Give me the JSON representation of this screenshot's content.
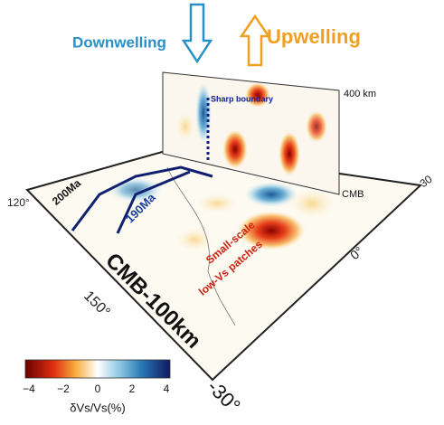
{
  "arrows": {
    "downwelling": "Downwelling",
    "upwelling": "Upwelling"
  },
  "section": {
    "boundary": "Sharp boundary",
    "top_depth": "400 km",
    "bottom_depth": "CMB"
  },
  "map": {
    "slab_ages": [
      "200Ma",
      "190Ma"
    ],
    "annotation_lines": [
      "Small-scale",
      "low-Vs patches"
    ],
    "depth_label": "CMB-100km",
    "longitudes": [
      "120°",
      "150°",
      "0°"
    ],
    "latitudes": [
      "30",
      "-30°"
    ]
  },
  "colorbar": {
    "ticks": [
      "−4",
      "−2",
      "0",
      "2",
      "4"
    ],
    "label": "δVs/Vs(%)"
  }
}
